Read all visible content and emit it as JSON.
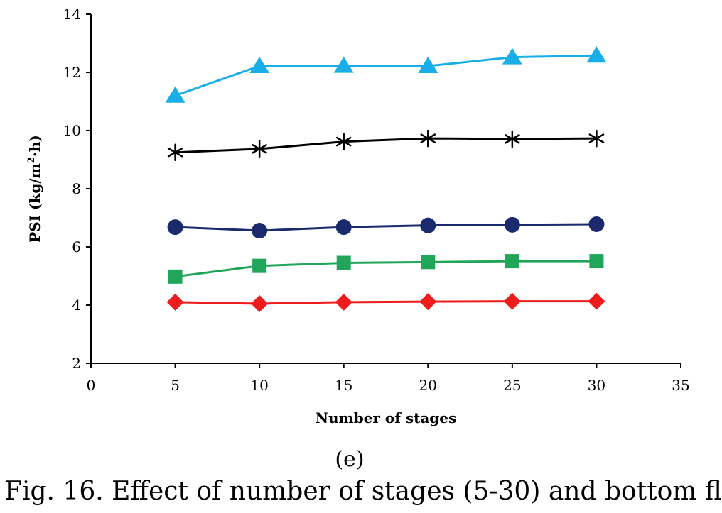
{
  "chart_data": {
    "type": "line",
    "xlabel": "Number of stages",
    "ylabel_main": "PSI (kg/m",
    "ylabel_sup": "2",
    "ylabel_tail": "·h)",
    "xlim": [
      0,
      35
    ],
    "ylim": [
      2,
      14
    ],
    "xticks": [
      0,
      5,
      10,
      15,
      20,
      25,
      30,
      35
    ],
    "yticks": [
      2,
      4,
      6,
      8,
      10,
      12,
      14
    ],
    "grid": false,
    "x": [
      5,
      10,
      15,
      20,
      25,
      30
    ],
    "series": [
      {
        "marker": "triangle",
        "color": "#1aaee8",
        "values": [
          11.2,
          12.22,
          12.23,
          12.22,
          12.52,
          12.58
        ]
      },
      {
        "marker": "asterisk",
        "color": "#000000",
        "values": [
          9.25,
          9.37,
          9.62,
          9.73,
          9.71,
          9.73
        ]
      },
      {
        "marker": "circle",
        "color": "#1a2a6c",
        "values": [
          6.68,
          6.56,
          6.68,
          6.74,
          6.76,
          6.78
        ]
      },
      {
        "marker": "square",
        "color": "#21a659",
        "values": [
          4.98,
          5.35,
          5.45,
          5.48,
          5.51,
          5.51
        ]
      },
      {
        "marker": "diamond",
        "color": "#ee1c1c",
        "values": [
          4.1,
          4.05,
          4.1,
          4.12,
          4.13,
          4.13
        ]
      }
    ]
  },
  "figure": {
    "panel_label": "(e)",
    "caption": "Fig. 16. Effect of number of stages (5-30) and bottom fl"
  }
}
